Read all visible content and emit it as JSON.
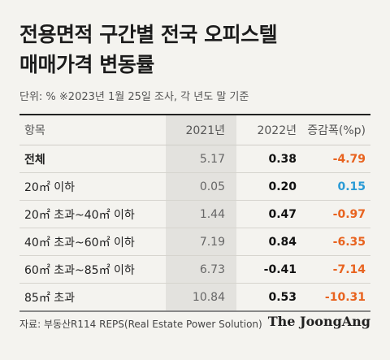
{
  "title": {
    "line1": "전용면적 구간별 전국 오피스텔",
    "line2": "매매가격 변동률"
  },
  "unit_note": "단위: %   ※2023년 1월 25일 조사, 각 년도 말 기준",
  "source": "자료: 부동산R114 REPS(Real Estate Power Solution)",
  "logo": "The JoongAng",
  "chart_data": {
    "type": "table",
    "columns": [
      "항목",
      "2021년",
      "2022년",
      "증감폭(%p)"
    ],
    "rows": [
      {
        "item": "전체",
        "y2021": "5.17",
        "y2022": "0.38",
        "change": "-4.79"
      },
      {
        "item": "20㎡ 이하",
        "y2021": "0.05",
        "y2022": "0.20",
        "change": "0.15"
      },
      {
        "item": "20㎡ 초과~40㎡ 이하",
        "y2021": "1.44",
        "y2022": "0.47",
        "change": "-0.97"
      },
      {
        "item": "40㎡ 초과~60㎡ 이하",
        "y2021": "7.19",
        "y2022": "0.84",
        "change": "-6.35"
      },
      {
        "item": "60㎡ 초과~85㎡ 이하",
        "y2021": "6.73",
        "y2022": "-0.41",
        "change": "-7.14"
      },
      {
        "item": "85㎡ 초과",
        "y2021": "10.84",
        "y2022": "0.53",
        "change": "-10.31"
      }
    ],
    "colors": {
      "negative_change": "#e8631f",
      "positive_change": "#2a9bd6",
      "shaded_column": "#e3e2de"
    }
  }
}
